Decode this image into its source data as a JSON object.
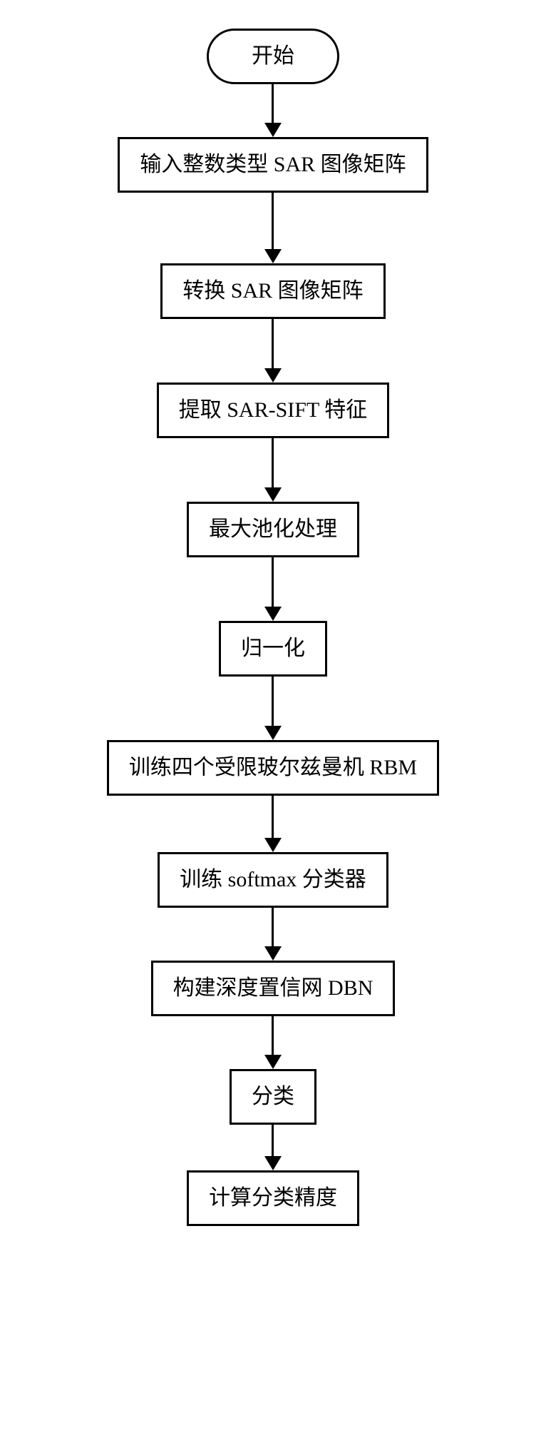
{
  "flowchart": {
    "type": "flowchart",
    "direction": "vertical",
    "background_color": "#ffffff",
    "border_color": "#000000",
    "border_width": 3,
    "text_color": "#000000",
    "font_size": 30,
    "arrow_color": "#000000",
    "arrow_shaft_width": 3,
    "arrow_head_size": 20,
    "nodes": [
      {
        "id": "n0",
        "shape": "terminator",
        "label": "开始",
        "arrow_len": 55
      },
      {
        "id": "n1",
        "shape": "rect",
        "label": "输入整数类型 SAR 图像矩阵",
        "arrow_len": 80
      },
      {
        "id": "n2",
        "shape": "rect",
        "label": "转换 SAR 图像矩阵",
        "arrow_len": 70
      },
      {
        "id": "n3",
        "shape": "rect",
        "label": "提取 SAR-SIFT 特征",
        "arrow_len": 70
      },
      {
        "id": "n4",
        "shape": "rect",
        "label": "最大池化处理",
        "arrow_len": 70
      },
      {
        "id": "n5",
        "shape": "rect",
        "label": "归一化",
        "arrow_len": 70
      },
      {
        "id": "n6",
        "shape": "rect",
        "label": "训练四个受限玻尔兹曼机 RBM",
        "arrow_len": 60
      },
      {
        "id": "n7",
        "shape": "rect",
        "label": "训练 softmax 分类器",
        "arrow_len": 55
      },
      {
        "id": "n8",
        "shape": "rect",
        "label": "构建深度置信网 DBN",
        "arrow_len": 55
      },
      {
        "id": "n9",
        "shape": "rect",
        "label": "分类",
        "arrow_len": 45
      },
      {
        "id": "n10",
        "shape": "rect",
        "label": "计算分类精度",
        "arrow_len": 0
      }
    ]
  }
}
